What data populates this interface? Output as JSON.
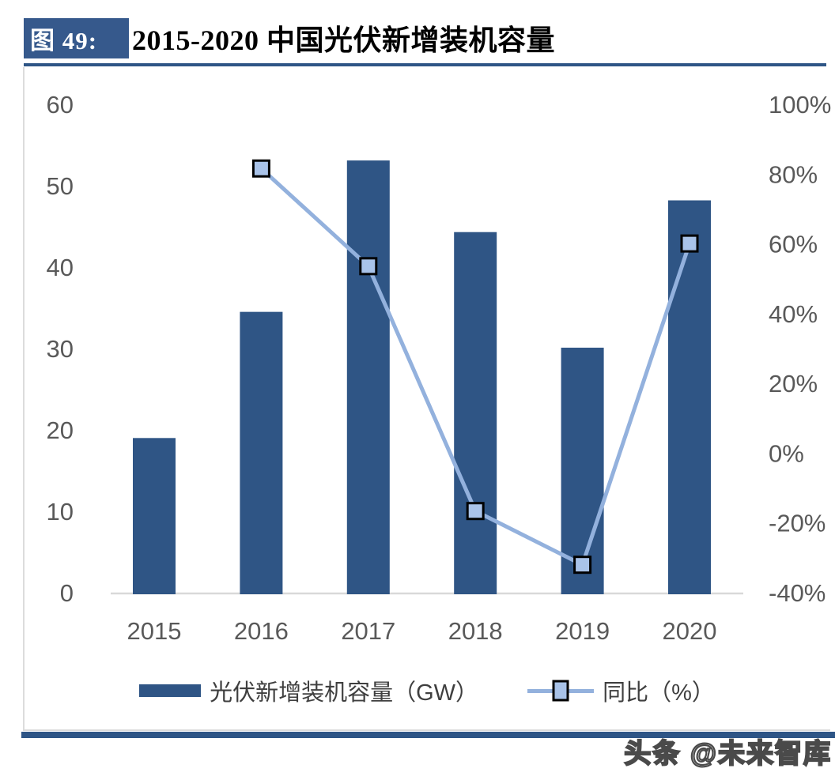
{
  "header": {
    "figure_label": "图 49:",
    "title": "2015-2020 中国光伏新增装机容量"
  },
  "footer": {
    "watermark": "头条 @未来智库"
  },
  "colors": {
    "header_bg": "#36598C",
    "title_text": "#17365D",
    "rule": "#2E5586",
    "bar": "#2F5585",
    "line": "#93B1DD",
    "marker_fill": "#A9C3E9",
    "marker_stroke": "#000000",
    "axis_text": "#595959",
    "axis_line": "#D9D9D9",
    "legend_text": "#3F3F3F"
  },
  "chart_data": {
    "type": "bar",
    "subtype": "combo-bar-line-dual-axis",
    "title": "2015-2020 中国光伏新增装机容量",
    "categories": [
      "2015",
      "2016",
      "2017",
      "2018",
      "2019",
      "2020"
    ],
    "series": [
      {
        "name": "光伏新增装机容量（GW）",
        "type": "bar",
        "axis": "left",
        "values": [
          19,
          34.5,
          53.1,
          44.3,
          30.1,
          48.2
        ]
      },
      {
        "name": "同比（%）",
        "type": "line",
        "axis": "right",
        "marker": "square",
        "values": [
          null,
          81.6,
          53.6,
          -16.6,
          -32.0,
          60.1
        ]
      }
    ],
    "left_axis": {
      "min": 0,
      "max": 60,
      "ticks": [
        "0",
        "10",
        "20",
        "30",
        "40",
        "50",
        "60"
      ]
    },
    "right_axis": {
      "min": -40,
      "max": 100,
      "ticks": [
        "-40%",
        "-20%",
        "0%",
        "20%",
        "40%",
        "60%",
        "80%",
        "100%"
      ]
    },
    "grid": false,
    "legend_position": "bottom"
  }
}
